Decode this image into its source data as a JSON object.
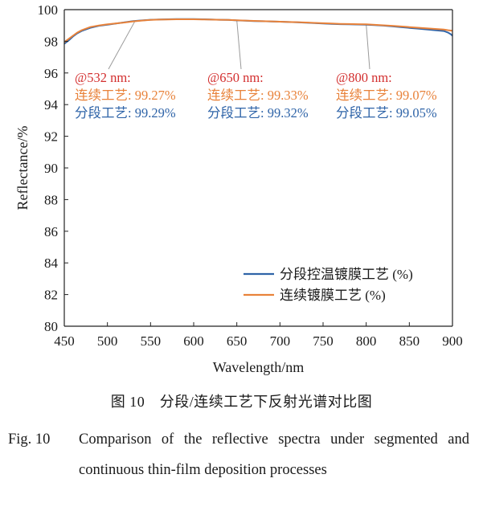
{
  "chart_data": {
    "type": "line",
    "xlabel": "Wavelength/nm",
    "ylabel": "Reflectance/%",
    "xlim": [
      450,
      900
    ],
    "ylim": [
      80,
      100
    ],
    "x_ticks": [
      "450",
      "500",
      "550",
      "600",
      "650",
      "700",
      "750",
      "800",
      "850",
      "900"
    ],
    "y_ticks": [
      "80",
      "82",
      "84",
      "86",
      "88",
      "90",
      "92",
      "94",
      "96",
      "98",
      "100"
    ],
    "grid": false,
    "legend_position": "bottom-right",
    "series": [
      {
        "name": "分段控温镀膜工艺 (%)",
        "color": "#2f64a8",
        "x": [
          450,
          455,
          460,
          465,
          470,
          480,
          490,
          500,
          510,
          520,
          530,
          540,
          550,
          560,
          570,
          580,
          590,
          600,
          610,
          620,
          630,
          640,
          650,
          660,
          670,
          680,
          690,
          700,
          710,
          720,
          730,
          740,
          750,
          760,
          770,
          780,
          790,
          800,
          810,
          820,
          830,
          840,
          850,
          860,
          870,
          880,
          890,
          895,
          898,
          900
        ],
        "y": [
          97.85,
          98.05,
          98.3,
          98.5,
          98.65,
          98.85,
          98.98,
          99.05,
          99.12,
          99.2,
          99.28,
          99.32,
          99.36,
          99.38,
          99.39,
          99.4,
          99.4,
          99.4,
          99.39,
          99.38,
          99.36,
          99.35,
          99.32,
          99.3,
          99.28,
          99.27,
          99.25,
          99.24,
          99.22,
          99.2,
          99.18,
          99.15,
          99.12,
          99.1,
          99.08,
          99.07,
          99.06,
          99.05,
          99.02,
          98.99,
          98.95,
          98.9,
          98.85,
          98.8,
          98.75,
          98.7,
          98.65,
          98.55,
          98.45,
          98.35
        ]
      },
      {
        "name": "连续镀膜工艺 (%)",
        "color": "#e8823a",
        "x": [
          450,
          455,
          460,
          465,
          470,
          480,
          490,
          500,
          510,
          520,
          530,
          540,
          550,
          560,
          570,
          580,
          590,
          600,
          610,
          620,
          630,
          640,
          650,
          660,
          670,
          680,
          690,
          700,
          710,
          720,
          730,
          740,
          750,
          760,
          770,
          780,
          790,
          800,
          810,
          820,
          830,
          840,
          850,
          860,
          870,
          880,
          890,
          895,
          898,
          900
        ],
        "y": [
          97.95,
          98.15,
          98.35,
          98.55,
          98.7,
          98.9,
          99.0,
          99.07,
          99.13,
          99.19,
          99.26,
          99.31,
          99.35,
          99.37,
          99.38,
          99.39,
          99.39,
          99.39,
          99.38,
          99.37,
          99.36,
          99.35,
          99.33,
          99.31,
          99.29,
          99.27,
          99.26,
          99.24,
          99.22,
          99.21,
          99.19,
          99.16,
          99.14,
          99.12,
          99.1,
          99.09,
          99.08,
          99.07,
          99.04,
          99.01,
          98.98,
          98.94,
          98.9,
          98.86,
          98.82,
          98.78,
          98.74,
          98.7,
          98.68,
          98.66
        ]
      }
    ],
    "annotations": [
      {
        "x": 532,
        "point_y": 99.28,
        "at": "@532 nm:",
        "continuous": "连续工艺: 99.27%",
        "segmented": "分段工艺: 99.29%"
      },
      {
        "x": 650,
        "point_y": 99.33,
        "at": "@650 nm:",
        "continuous": "连续工艺: 99.33%",
        "segmented": "分段工艺: 99.32%"
      },
      {
        "x": 800,
        "point_y": 99.06,
        "at": "@800 nm:",
        "continuous": "连续工艺: 99.07%",
        "segmented": "分段工艺: 99.05%"
      }
    ],
    "annotation_colors": {
      "at": "#d32f2f",
      "continuous": "#e8823a",
      "segmented": "#2f64a8"
    }
  },
  "caption": {
    "cn": "图 10　分段/连续工艺下反射光谱对比图",
    "en_label": "Fig. 10",
    "en_text": "Comparison of the reflective spectra under segmented and continuous thin-film deposition processes"
  }
}
